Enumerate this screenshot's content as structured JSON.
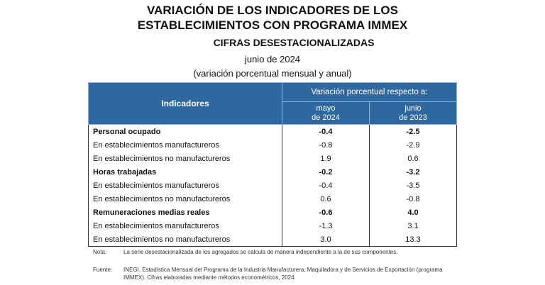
{
  "title": [
    "VARIACIÓN DE LOS INDICADORES DE LOS",
    "ESTABLECIMIENTOS CON PROGRAMA IMMEX"
  ],
  "subtitle": "CIFRAS DESESTACIONALIZADAS",
  "period": "junio de 2024",
  "units": "(variación porcentual mensual y anual)",
  "table": {
    "col_indicadores": "Indicadores",
    "col_group": "Variación porcentual respecto a:",
    "col1": [
      "mayo",
      "de 2024"
    ],
    "col2": [
      "junio",
      "de 2023"
    ],
    "rows": [
      {
        "label": "Personal ocupado",
        "m": "-0.4",
        "a": "-2.5",
        "bold": true
      },
      {
        "label": "En establecimientos manufactureros",
        "m": "-0.8",
        "a": "-2.9"
      },
      {
        "label": "En establecimientos no manufactureros",
        "m": "1.9",
        "a": "0.6"
      },
      {
        "label": "Horas trabajadas",
        "m": "-0.2",
        "a": "-3.2",
        "bold": true
      },
      {
        "label": "En establecimientos manufactureros",
        "m": "-0.4",
        "a": "-3.5"
      },
      {
        "label": "En establecimientos no manufactureros",
        "m": "0.6",
        "a": "-0.8"
      },
      {
        "label": "Remuneraciones medias reales",
        "m": "-0.6",
        "a": "4.0",
        "bold": true
      },
      {
        "label": "En establecimientos manufactureros",
        "m": "-1.3",
        "a": "3.1"
      },
      {
        "label": "En establecimientos no manufactureros",
        "m": "3.0",
        "a": "13.3"
      }
    ]
  },
  "note": {
    "label": "Nota:",
    "text": "La serie desestacionalizada de los agregados se calcula de manera independiente a la de sus componentes."
  },
  "source": {
    "label": "Fuente:",
    "text": "INEGI. Estadística Mensual del Programa de la Industria Manufacturera, Maquiladora y de Servicios de Exportación (programa IMMEX). Cifras elaboradas mediante métodos econométricos, 2024."
  }
}
